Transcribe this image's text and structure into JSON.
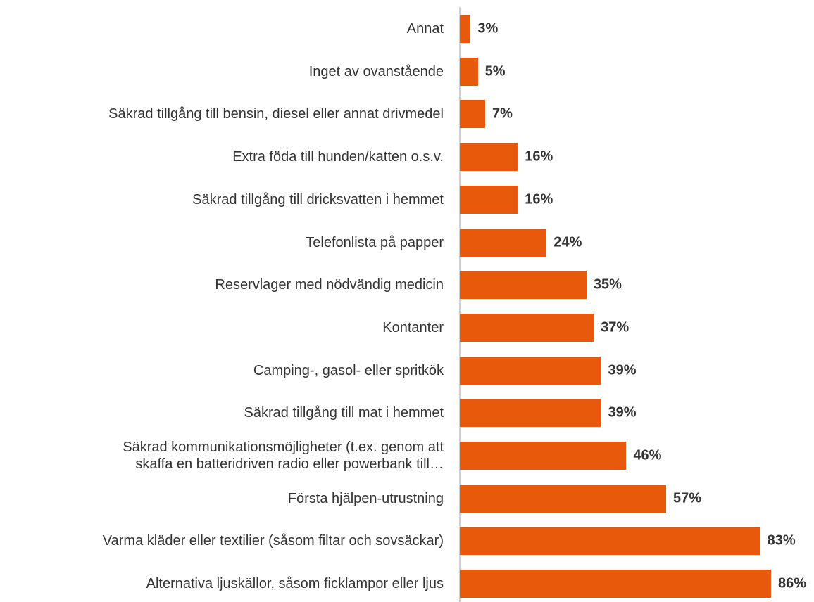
{
  "chart_data": {
    "type": "bar",
    "orientation": "horizontal",
    "color": "#e8590c",
    "categories": [
      "Annat",
      "Inget av ovanstående",
      "Säkrad tillgång till bensin, diesel eller annat drivmedel",
      "Extra föda till hunden/katten o.s.v.",
      "Säkrad tillgång till dricksvatten i hemmet",
      "Telefonlista på papper",
      "Reservlager med nödvändig medicin",
      "Kontanter",
      "Camping-, gasol- eller spritkök",
      "Säkrad tillgång till mat i hemmet",
      "Säkrad kommunikationsmöjligheter (t.ex. genom att\nskaffa en batteridriven radio eller powerbank till…",
      "Första hjälpen-utrustning",
      "Varma kläder eller textilier (såsom filtar och sovsäckar)",
      "Alternativa ljuskällor, såsom ficklampor eller ljus"
    ],
    "values": [
      3,
      5,
      7,
      16,
      16,
      24,
      35,
      37,
      39,
      39,
      46,
      57,
      83,
      86
    ],
    "value_labels": [
      "3%",
      "5%",
      "7%",
      "16%",
      "16%",
      "24%",
      "35%",
      "37%",
      "39%",
      "39%",
      "46%",
      "57%",
      "83%",
      "86%"
    ]
  }
}
